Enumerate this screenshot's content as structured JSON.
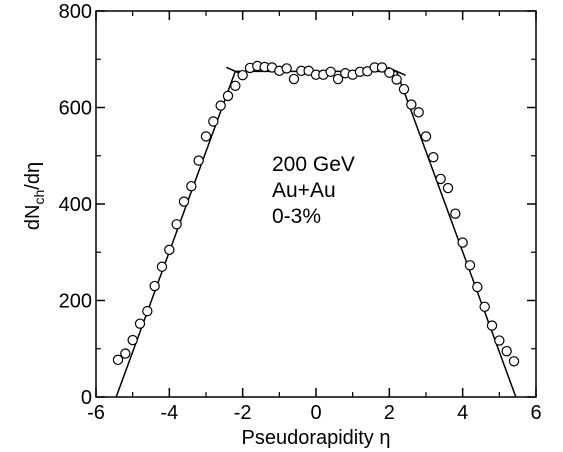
{
  "chart_data": {
    "type": "scatter",
    "xlabel": "Pseudorapidity η",
    "ylabel_main": "dN",
    "ylabel_sub": "ch",
    "ylabel_tail": "/dη",
    "xlim": [
      -6,
      6
    ],
    "ylim": [
      0,
      800
    ],
    "x_ticks": [
      -6,
      -4,
      -2,
      0,
      2,
      4,
      6
    ],
    "x_tick_labels": [
      "-6",
      "-4",
      "-2",
      "0",
      "2",
      "4",
      "6"
    ],
    "y_ticks": [
      0,
      200,
      400,
      600,
      800
    ],
    "y_tick_labels": [
      "0",
      "200",
      "400",
      "600",
      "800"
    ],
    "grid": false,
    "annotations": [
      "200 GeV",
      "Au+Au",
      "0-3%"
    ],
    "points": {
      "x": [
        -5.4,
        -5.2,
        -5.0,
        -4.8,
        -4.6,
        -4.4,
        -4.2,
        -4.0,
        -3.8,
        -3.6,
        -3.4,
        -3.2,
        -3.0,
        -2.8,
        -2.6,
        -2.4,
        -2.2,
        -2.0,
        -1.8,
        -1.6,
        -1.4,
        -1.2,
        -1.0,
        -0.8,
        -0.6,
        -0.4,
        -0.2,
        0.0,
        0.2,
        0.4,
        0.6,
        0.8,
        1.0,
        1.2,
        1.4,
        1.6,
        1.8,
        2.0,
        2.2,
        2.4,
        2.6,
        2.8,
        3.0,
        3.2,
        3.4,
        3.6,
        3.8,
        4.0,
        4.2,
        4.4,
        4.6,
        4.8,
        5.0,
        5.2,
        5.4
      ],
      "y": [
        77,
        90,
        118,
        152,
        178,
        230,
        270,
        305,
        358,
        405,
        437,
        490,
        540,
        571,
        604,
        624,
        645,
        667,
        682,
        686,
        684,
        683,
        676,
        681,
        659,
        676,
        676,
        668,
        668,
        674,
        659,
        671,
        668,
        674,
        675,
        683,
        683,
        672,
        658,
        638,
        606,
        590,
        540,
        497,
        452,
        433,
        380,
        320,
        273,
        228,
        187,
        148,
        117,
        95,
        74
      ]
    },
    "fit_line": {
      "x": [
        -5.45,
        -2.2,
        2.2,
        5.45
      ],
      "y": [
        0,
        675,
        675,
        0
      ]
    },
    "edge_markers": [
      -2.2,
      2.2
    ]
  }
}
